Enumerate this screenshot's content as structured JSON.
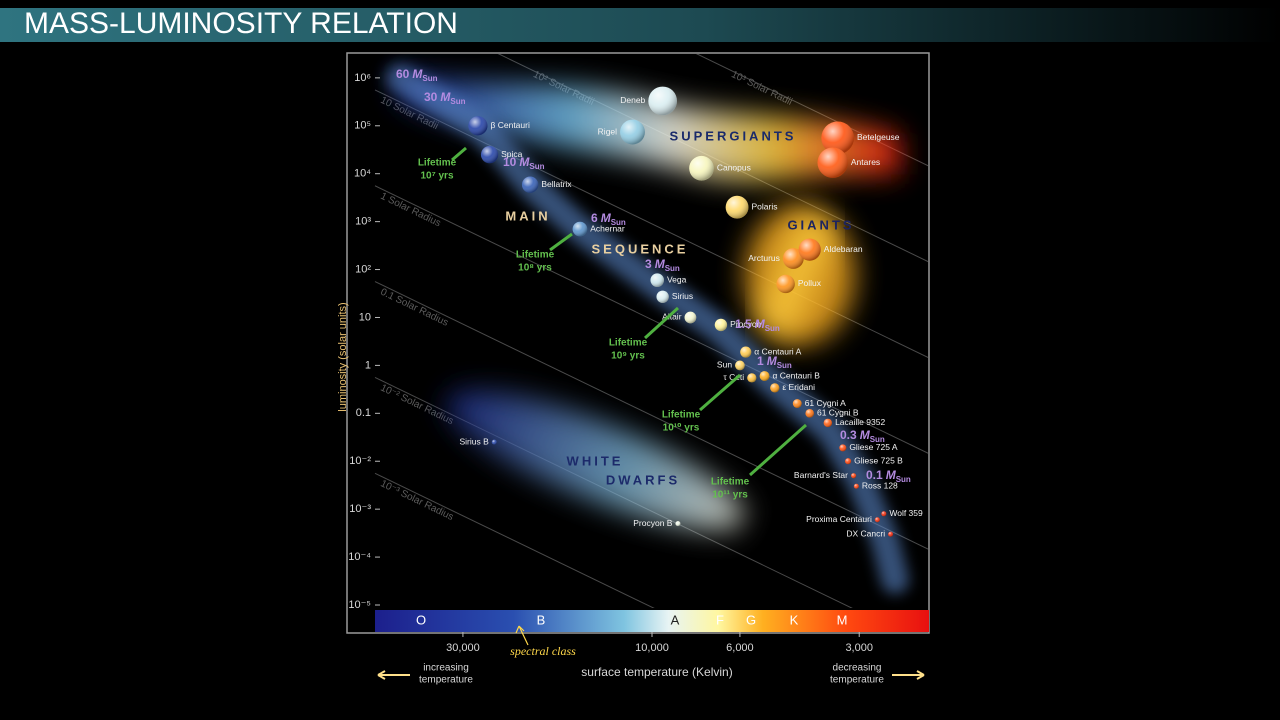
{
  "header": {
    "title": "MASS-LUMINOSITY RELATION"
  },
  "chart_data": {
    "type": "scatter",
    "xlabel": "surface temperature (Kelvin)",
    "ylabel": "luminosity (solar units)",
    "xscale": "log",
    "yscale": "log",
    "xlim": [
      50000,
      2000
    ],
    "ylim": [
      1e-05,
      3000000
    ],
    "xticks": [
      {
        "value": 30000,
        "label": "30,000"
      },
      {
        "value": 10000,
        "label": "10,000"
      },
      {
        "value": 6000,
        "label": "6,000"
      },
      {
        "value": 3000,
        "label": "3,000"
      }
    ],
    "yticks": [
      {
        "value": 1000000,
        "label": "10⁶"
      },
      {
        "value": 100000,
        "label": "10⁵"
      },
      {
        "value": 10000,
        "label": "10⁴"
      },
      {
        "value": 1000,
        "label": "10³"
      },
      {
        "value": 100,
        "label": "10²"
      },
      10,
      1,
      0.1,
      {
        "value": 0.01,
        "label": "10⁻²"
      },
      {
        "value": 0.001,
        "label": "10⁻³"
      },
      {
        "value": 0.0001,
        "label": "10⁻⁴"
      },
      {
        "value": 1e-05,
        "label": "10⁻⁵"
      }
    ],
    "stars": [
      {
        "name": "β Centauri",
        "temperature": 27500,
        "luminosity": 100000
      },
      {
        "name": "Spica",
        "temperature": 25700,
        "luminosity": 25000
      },
      {
        "name": "Bellatrix",
        "temperature": 20300,
        "luminosity": 5900
      },
      {
        "name": "Achernar",
        "temperature": 15200,
        "luminosity": 700
      },
      {
        "name": "Vega",
        "temperature": 9700,
        "luminosity": 60
      },
      {
        "name": "Sirius",
        "temperature": 9400,
        "luminosity": 27
      },
      {
        "name": "Altair",
        "temperature": 8000,
        "luminosity": 10
      },
      {
        "name": "Procyon",
        "temperature": 6700,
        "luminosity": 7
      },
      {
        "name": "α Centauri A",
        "temperature": 5800,
        "luminosity": 1.9
      },
      {
        "name": "Sun",
        "temperature": 6000,
        "luminosity": 1
      },
      {
        "name": "α Centauri B",
        "temperature": 5200,
        "luminosity": 0.6
      },
      {
        "name": "τ Ceti",
        "temperature": 5600,
        "luminosity": 0.55
      },
      {
        "name": "ε Eridani",
        "temperature": 4900,
        "luminosity": 0.34
      },
      {
        "name": "61 Cygni A",
        "temperature": 4300,
        "luminosity": 0.16
      },
      {
        "name": "61 Cygni B",
        "temperature": 4000,
        "luminosity": 0.1
      },
      {
        "name": "Lacaille 9352",
        "temperature": 3600,
        "luminosity": 0.063
      },
      {
        "name": "Gliese 725 A",
        "temperature": 3300,
        "luminosity": 0.019
      },
      {
        "name": "Gliese 725 B",
        "temperature": 3200,
        "luminosity": 0.01
      },
      {
        "name": "Barnard's Star",
        "temperature": 3100,
        "luminosity": 0.005
      },
      {
        "name": "Ross 128",
        "temperature": 3050,
        "luminosity": 0.003
      },
      {
        "name": "Wolf 359",
        "temperature": 2600,
        "luminosity": 0.0008
      },
      {
        "name": "Proxima Centauri",
        "temperature": 2700,
        "luminosity": 0.0006
      },
      {
        "name": "DX Cancri",
        "temperature": 2500,
        "luminosity": 0.0003
      },
      {
        "name": "Deneb",
        "temperature": 9400,
        "luminosity": 330000
      },
      {
        "name": "Rigel",
        "temperature": 11200,
        "luminosity": 74000
      },
      {
        "name": "Canopus",
        "temperature": 7500,
        "luminosity": 13000
      },
      {
        "name": "Polaris",
        "temperature": 6100,
        "luminosity": 2000
      },
      {
        "name": "Betelgeuse",
        "temperature": 3400,
        "luminosity": 56000
      },
      {
        "name": "Antares",
        "temperature": 3500,
        "luminosity": 17000
      },
      {
        "name": "Arcturus",
        "temperature": 4400,
        "luminosity": 170
      },
      {
        "name": "Aldebaran",
        "temperature": 4000,
        "luminosity": 260
      },
      {
        "name": "Pollux",
        "temperature": 4600,
        "luminosity": 50
      },
      {
        "name": "Sirius B",
        "temperature": 25000,
        "luminosity": 0.025
      },
      {
        "name": "Procyon B",
        "temperature": 8600,
        "luminosity": 0.0005
      }
    ],
    "regions": [
      "SUPERGIANTS",
      "GIANTS",
      "MAIN",
      "SEQUENCE",
      "WHITE",
      "DWARFS"
    ],
    "radius_lines": [
      {
        "radius": 1000,
        "label": "10³ Solar Radii"
      },
      {
        "radius": 100,
        "label": "10² Solar Radii"
      },
      {
        "radius": 10,
        "label": "10 Solar Radii"
      },
      {
        "radius": 1,
        "label": "1 Solar Radius"
      },
      {
        "radius": 0.1,
        "label": "0.1 Solar Radius"
      },
      {
        "radius": 0.01,
        "label": "10⁻² Solar Radius"
      },
      {
        "radius": 0.001,
        "label": "10⁻³ Solar Radius"
      }
    ],
    "masses": [
      60,
      30,
      10,
      6,
      3,
      1.5,
      1,
      0.3,
      0.1
    ],
    "mass_unit": "M",
    "mass_unit_subscript": "Sun",
    "lifetime_word": "Lifetime",
    "lifetimes": [
      "10⁷ yrs",
      "10⁸ yrs",
      "10⁹ yrs",
      "10¹⁰ yrs",
      "10¹¹ yrs"
    ],
    "spectral_classes": [
      "O",
      "B",
      "A",
      "F",
      "G",
      "K",
      "M"
    ],
    "spectral_class_label": "spectral class",
    "left_note": [
      "increasing",
      "temperature"
    ],
    "right_note": [
      "decreasing",
      "temperature"
    ]
  }
}
